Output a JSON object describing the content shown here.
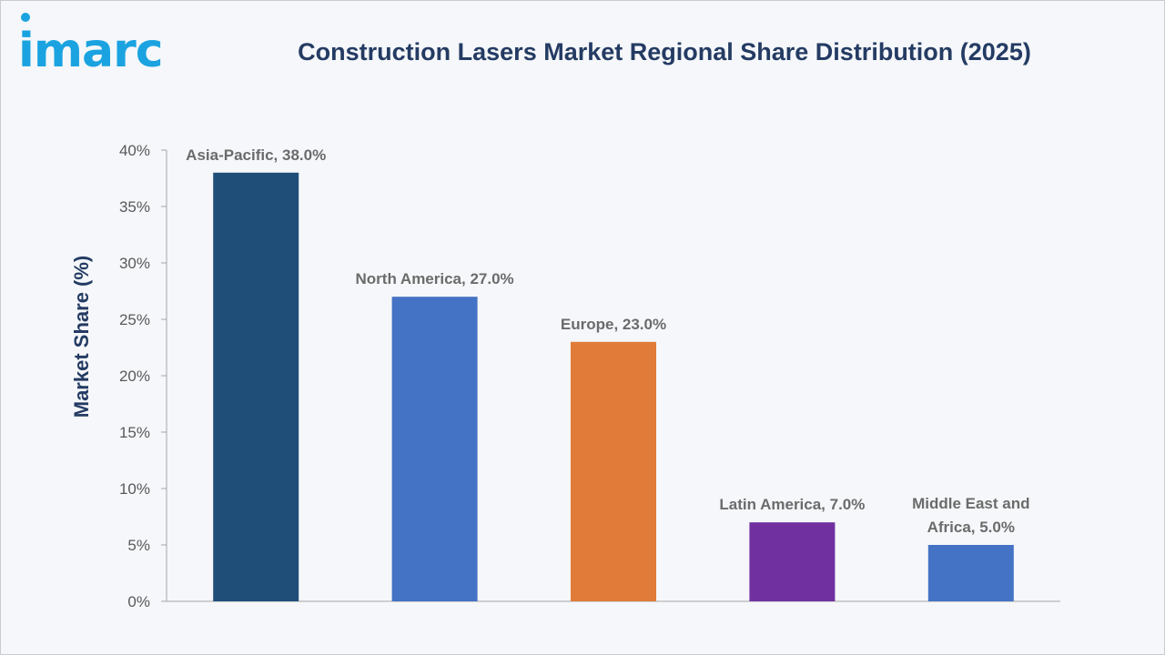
{
  "brand": {
    "logo_text": "imarc"
  },
  "chart_data": {
    "type": "bar",
    "title": "Construction Lasers Market Regional Share Distribution (2025)",
    "xlabel": "",
    "ylabel": "Market Share (%)",
    "ylim": [
      0,
      40
    ],
    "y_ticks": [
      "0%",
      "5%",
      "10%",
      "15%",
      "20%",
      "25%",
      "30%",
      "35%",
      "40%"
    ],
    "categories": [
      "Asia-Pacific",
      "North America",
      "Europe",
      "Latin America",
      "Middle East and Africa"
    ],
    "values": [
      38.0,
      27.0,
      23.0,
      7.0,
      5.0
    ],
    "data_labels": [
      [
        "Asia-Pacific, 38.0%"
      ],
      [
        "North America, 27.0%"
      ],
      [
        "Europe, 23.0%"
      ],
      [
        "Latin America, 7.0%"
      ],
      [
        "Middle East and",
        "Africa, 5.0%"
      ]
    ],
    "colors": [
      "#1f4e79",
      "#4472c4",
      "#e07b39",
      "#7030a0",
      "#4472c4"
    ],
    "grid": false,
    "legend": "none"
  }
}
